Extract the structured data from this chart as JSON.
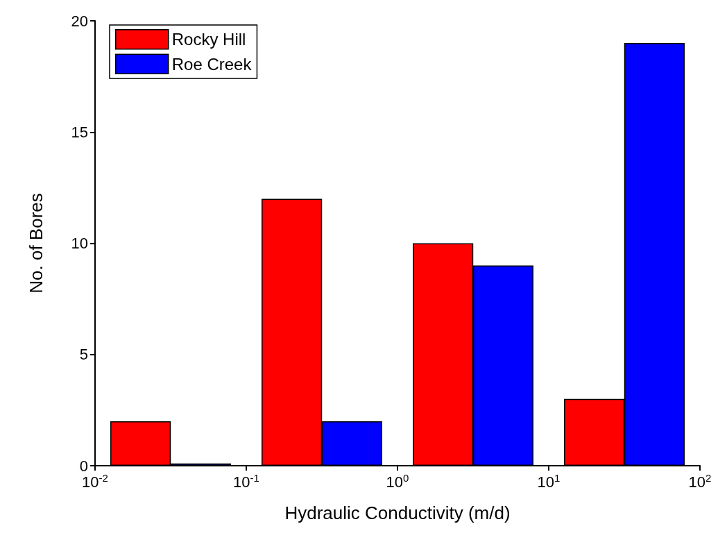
{
  "chart_data": {
    "type": "bar",
    "xlabel": "Hydraulic Conductivity (m/d)",
    "ylabel": "No. of Bores",
    "log": "x",
    "xlim": [
      0.01,
      100
    ],
    "xticks": [
      {
        "value": 0.01,
        "label": "10$^{-2}$"
      },
      {
        "value": 0.1,
        "label": "10$^{-1}$"
      },
      {
        "value": 1,
        "label": "10$^{0}$"
      },
      {
        "value": 10,
        "label": "10$^{1}$"
      },
      {
        "value": 100,
        "label": "10$^{2}$"
      }
    ],
    "ylim": [
      0,
      20
    ],
    "yticks": [
      0,
      5,
      10,
      15,
      20
    ],
    "grid": false,
    "legend": "top left",
    "series": [
      {
        "name": "Rocky Hill",
        "color": "#ff0000",
        "x": [
          0.02,
          0.2,
          2,
          20
        ],
        "values": [
          2,
          12,
          10,
          3
        ]
      },
      {
        "name": "Roe Creek",
        "color": "#0000ff",
        "x": [
          0.05,
          0.5,
          5,
          50
        ],
        "values": [
          0.1,
          2,
          9,
          19
        ]
      }
    ]
  }
}
